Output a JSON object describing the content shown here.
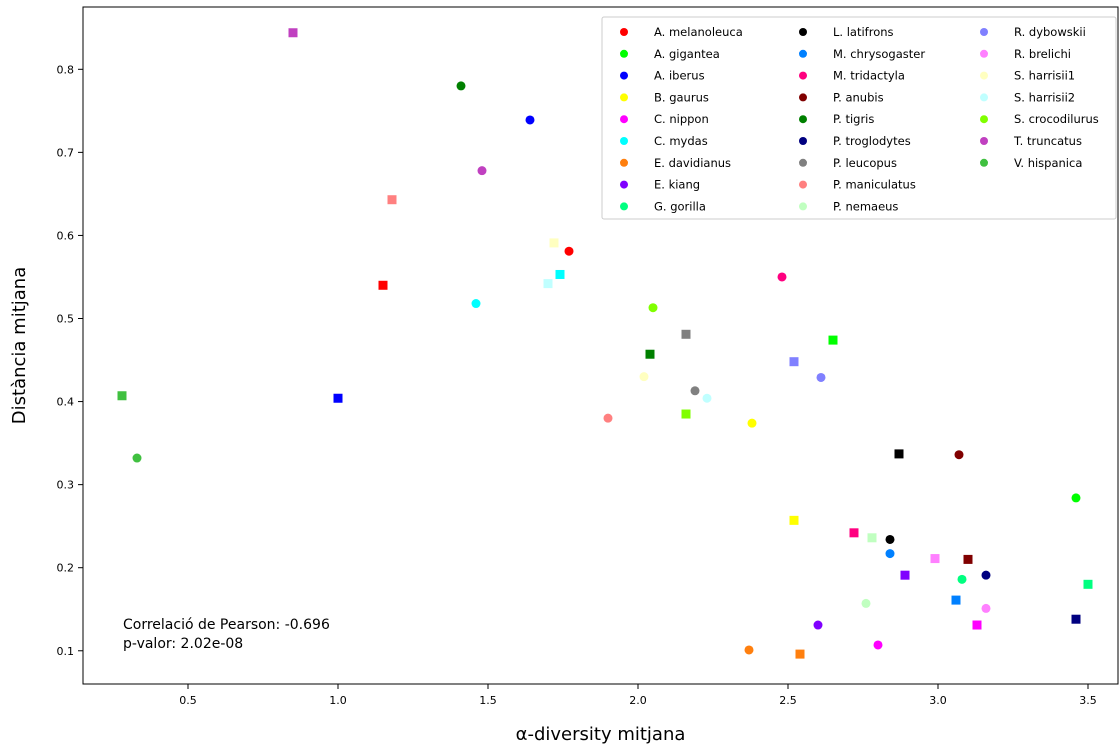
{
  "chart_data": {
    "type": "scatter",
    "xlabel": "α-diversity mitjana",
    "ylabel": "Distància mitjana",
    "xlim": [
      0.15,
      3.6
    ],
    "ylim": [
      0.06,
      0.875
    ],
    "x_ticks": [
      0.5,
      1.0,
      1.5,
      2.0,
      2.5,
      3.0,
      3.5
    ],
    "x_tick_labels": [
      "0.5",
      "1.0",
      "1.5",
      "2.0",
      "2.5",
      "3.0",
      "3.5"
    ],
    "y_ticks": [
      0.1,
      0.2,
      0.3,
      0.4,
      0.5,
      0.6,
      0.7,
      0.8
    ],
    "y_tick_labels": [
      "0.1",
      "0.2",
      "0.3",
      "0.4",
      "0.5",
      "0.6",
      "0.7",
      "0.8"
    ],
    "grid": false,
    "legend_position": "top-right",
    "legend_columns": 3,
    "annotation": [
      "Correlació de Pearson: -0.696",
      "p-valor: 2.02e-08"
    ],
    "series": [
      {
        "name": "A. melanoleuca",
        "color": "#ff0000",
        "points": [
          [
            1.77,
            0.581,
            "circle"
          ],
          [
            1.15,
            0.54,
            "square"
          ]
        ]
      },
      {
        "name": "A. gigantea",
        "color": "#00ff00",
        "points": [
          [
            3.46,
            0.284,
            "circle"
          ],
          [
            2.65,
            0.474,
            "square"
          ]
        ]
      },
      {
        "name": "A. iberus",
        "color": "#0000ff",
        "points": [
          [
            1.64,
            0.739,
            "circle"
          ],
          [
            1.0,
            0.404,
            "square"
          ]
        ]
      },
      {
        "name": "B. gaurus",
        "color": "#ffff00",
        "points": [
          [
            2.38,
            0.374,
            "circle"
          ],
          [
            2.52,
            0.257,
            "square"
          ]
        ]
      },
      {
        "name": "C. nippon",
        "color": "#ff00ff",
        "points": [
          [
            2.8,
            0.107,
            "circle"
          ],
          [
            3.13,
            0.131,
            "square"
          ]
        ]
      },
      {
        "name": "C. mydas",
        "color": "#00ffff",
        "points": [
          [
            1.46,
            0.518,
            "circle"
          ],
          [
            1.74,
            0.553,
            "square"
          ]
        ]
      },
      {
        "name": "E. davidianus",
        "color": "#ff7f0e",
        "points": [
          [
            2.37,
            0.101,
            "circle"
          ],
          [
            2.54,
            0.096,
            "square"
          ]
        ]
      },
      {
        "name": "E. kiang",
        "color": "#8000ff",
        "points": [
          [
            2.6,
            0.131,
            "circle"
          ],
          [
            2.89,
            0.191,
            "square"
          ]
        ]
      },
      {
        "name": "G. gorilla",
        "color": "#00ff80",
        "points": [
          [
            3.08,
            0.186,
            "circle"
          ],
          [
            3.5,
            0.18,
            "square"
          ]
        ]
      },
      {
        "name": "L. latifrons",
        "color": "#000000",
        "points": [
          [
            2.84,
            0.234,
            "circle"
          ],
          [
            2.87,
            0.337,
            "square"
          ]
        ]
      },
      {
        "name": "M. chrysogaster",
        "color": "#0080ff",
        "points": [
          [
            2.84,
            0.217,
            "circle"
          ],
          [
            3.06,
            0.161,
            "square"
          ]
        ]
      },
      {
        "name": "M. tridactyla",
        "color": "#ff0080",
        "points": [
          [
            2.48,
            0.55,
            "circle"
          ],
          [
            2.72,
            0.242,
            "square"
          ]
        ]
      },
      {
        "name": "P. anubis",
        "color": "#800000",
        "points": [
          [
            3.07,
            0.336,
            "circle"
          ],
          [
            3.1,
            0.21,
            "square"
          ]
        ]
      },
      {
        "name": "P. tigris",
        "color": "#008000",
        "points": [
          [
            1.41,
            0.78,
            "circle"
          ],
          [
            2.04,
            0.457,
            "square"
          ]
        ]
      },
      {
        "name": "P. troglodytes",
        "color": "#000080",
        "points": [
          [
            3.16,
            0.191,
            "circle"
          ],
          [
            3.46,
            0.138,
            "square"
          ]
        ]
      },
      {
        "name": "P. leucopus",
        "color": "#808080",
        "points": [
          [
            2.19,
            0.413,
            "circle"
          ],
          [
            2.16,
            0.481,
            "square"
          ]
        ]
      },
      {
        "name": "P. maniculatus",
        "color": "#ff8080",
        "points": [
          [
            1.9,
            0.38,
            "circle"
          ],
          [
            1.18,
            0.643,
            "square"
          ]
        ]
      },
      {
        "name": "P. nemaeus",
        "color": "#c0ffc0",
        "points": [
          [
            2.76,
            0.157,
            "circle"
          ],
          [
            2.78,
            0.236,
            "square"
          ]
        ]
      },
      {
        "name": "R. dybowskii",
        "color": "#8080ff",
        "points": [
          [
            2.61,
            0.429,
            "circle"
          ],
          [
            2.52,
            0.448,
            "square"
          ]
        ]
      },
      {
        "name": "R. brelichi",
        "color": "#ff80ff",
        "points": [
          [
            3.16,
            0.151,
            "circle"
          ],
          [
            2.99,
            0.211,
            "square"
          ]
        ]
      },
      {
        "name": "S. harrisii1",
        "color": "#ffffc0",
        "points": [
          [
            2.02,
            0.43,
            "circle"
          ],
          [
            1.72,
            0.591,
            "square"
          ]
        ]
      },
      {
        "name": "S. harrisii2",
        "color": "#c0ffff",
        "points": [
          [
            2.23,
            0.404,
            "circle"
          ],
          [
            1.7,
            0.542,
            "square"
          ]
        ]
      },
      {
        "name": "S. crocodilurus",
        "color": "#80ff00",
        "points": [
          [
            2.05,
            0.513,
            "circle"
          ],
          [
            2.16,
            0.385,
            "square"
          ]
        ]
      },
      {
        "name": "T. truncatus",
        "color": "#c040c0",
        "points": [
          [
            1.48,
            0.678,
            "circle"
          ],
          [
            0.85,
            0.844,
            "square"
          ]
        ]
      },
      {
        "name": "V. hispanica",
        "color": "#40c040",
        "points": [
          [
            0.33,
            0.332,
            "circle"
          ],
          [
            0.28,
            0.407,
            "square"
          ]
        ]
      }
    ]
  }
}
